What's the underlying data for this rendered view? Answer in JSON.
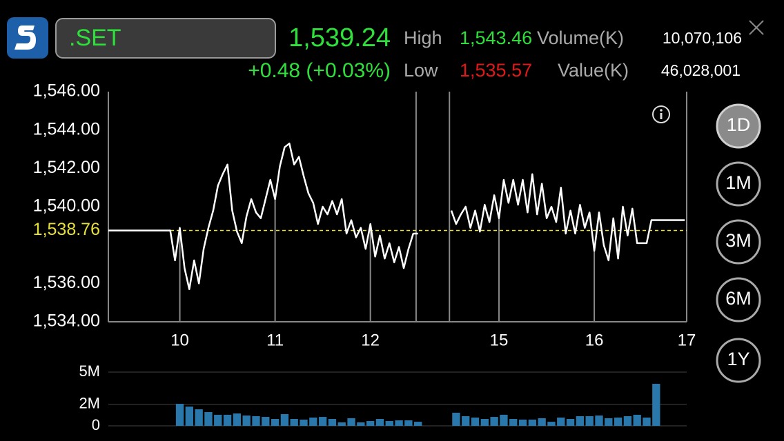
{
  "header": {
    "symbol": ".SET",
    "last": "1,539.24",
    "change": "+0.48 (+0.03%)",
    "high_label": "High",
    "high": "1,543.46",
    "volume_label": "Volume(K)",
    "volume": "10,070,106",
    "low_label": "Low",
    "low": "1,535.57",
    "value_label": "Value(K)",
    "value": "46,028,001"
  },
  "periods": [
    "1D",
    "1M",
    "3M",
    "6M",
    "1Y"
  ],
  "selected_period": 0,
  "chart_data": [
    {
      "type": "line",
      "color": "#ffffff",
      "x": [
        0,
        1,
        2,
        3,
        4,
        5,
        6,
        7,
        8,
        9,
        10,
        11,
        12,
        13,
        14,
        15,
        16,
        17,
        18,
        19,
        20,
        21,
        22,
        23,
        24,
        25,
        26,
        27,
        28,
        29,
        30,
        31,
        32,
        33,
        34,
        35,
        36,
        37,
        38,
        39,
        40,
        41,
        42,
        43,
        44,
        45,
        46,
        47,
        48,
        49,
        50,
        51,
        52,
        53,
        54,
        55,
        56,
        57,
        58,
        59,
        60,
        61,
        62,
        63,
        64,
        65,
        66,
        67,
        68,
        69,
        70,
        71,
        72,
        73,
        74,
        75,
        76,
        77,
        78,
        79,
        80,
        81,
        82,
        83,
        84,
        85,
        86,
        87,
        88,
        89,
        90,
        91,
        92,
        93,
        94,
        95,
        96,
        97,
        98,
        99,
        100,
        101,
        102,
        103,
        104,
        105,
        106,
        107,
        108,
        109,
        110,
        111,
        112,
        113,
        114,
        115,
        116,
        117,
        118,
        119,
        120,
        121
      ],
      "values": [
        1538.76,
        1538.76,
        1538.76,
        1538.76,
        1538.76,
        1538.76,
        1538.76,
        1538.76,
        1538.76,
        1538.76,
        1538.76,
        1538.76,
        1538.76,
        1538.76,
        1537.2,
        1538.9,
        1536.8,
        1535.7,
        1537.2,
        1536.0,
        1537.8,
        1538.9,
        1539.8,
        1541.1,
        1541.7,
        1542.2,
        1539.8,
        1538.7,
        1538.1,
        1539.5,
        1540.4,
        1539.7,
        1539.4,
        1540.4,
        1541.4,
        1540.4,
        1542.1,
        1543.1,
        1543.3,
        1542.2,
        1542.6,
        1541.6,
        1540.7,
        1540.2,
        1539.1,
        1540.0,
        1539.6,
        1540.3,
        1539.6,
        1540.4,
        1538.6,
        1539.3,
        1538.4,
        1538.9,
        1537.8,
        1539.1,
        1537.4,
        1538.5,
        1537.3,
        1538.1,
        1537.1,
        1537.9,
        1536.8,
        1537.8,
        1538.6,
        1538.6,
        null,
        null,
        null,
        null,
        null,
        null,
        1539.8,
        1539.1,
        1539.6,
        1540.0,
        1538.9,
        1539.8,
        1538.7,
        1540.1,
        1539.2,
        1540.6,
        1539.4,
        1541.4,
        1540.2,
        1541.4,
        1540.1,
        1541.4,
        1539.7,
        1541.7,
        1539.6,
        1541.2,
        1539.4,
        1540.0,
        1539.2,
        1541.0,
        1538.6,
        1539.8,
        1538.6,
        1540.1,
        1538.9,
        1539.7,
        1537.7,
        1539.7,
        1538.0,
        1537.2,
        1539.4,
        1537.3,
        1540.0,
        1538.5,
        1539.9,
        1538.1,
        1538.1,
        1538.1,
        1539.3,
        1539.3,
        1539.3,
        1539.3,
        1539.3,
        1539.3,
        1539.3,
        1539.3
      ],
      "xlim": [
        0,
        121.4
      ],
      "xticks": [
        {
          "value": 15,
          "label": "10"
        },
        {
          "value": 35,
          "label": "11"
        },
        {
          "value": 55,
          "label": "12"
        },
        {
          "value": 82,
          "label": "15"
        },
        {
          "value": 102,
          "label": "16"
        },
        {
          "value": 121.4,
          "label": "17"
        }
      ],
      "breaks": [
        64.6,
        71.6
      ],
      "ylim": [
        1534,
        1546
      ],
      "yticks": [
        {
          "value": 1534,
          "label": "1,534.00"
        },
        {
          "value": 1536,
          "label": "1,536.00"
        },
        {
          "value": 1540,
          "label": "1,540.00"
        },
        {
          "value": 1542,
          "label": "1,542.00"
        },
        {
          "value": 1544,
          "label": "1,544.00"
        },
        {
          "value": 1546,
          "label": "1,546.00"
        }
      ],
      "reference": {
        "value": 1538.76,
        "label": "1,538.76",
        "color": "#e8e03a"
      }
    },
    {
      "type": "bar",
      "color": "#2a78ab",
      "grid": true,
      "x": [
        15,
        17,
        19,
        21,
        23,
        25,
        27,
        29,
        31,
        33,
        35,
        37,
        39,
        41,
        43,
        45,
        47,
        49,
        51,
        53,
        55,
        57,
        59,
        61,
        63,
        65,
        73,
        75,
        77,
        79,
        81,
        83,
        85,
        87,
        89,
        91,
        93,
        95,
        97,
        99,
        101,
        103,
        105,
        107,
        109,
        111,
        113,
        115
      ],
      "values": [
        2050000,
        1790000,
        1540000,
        1280000,
        1030000,
        1030000,
        1150000,
        960000,
        900000,
        830000,
        640000,
        1090000,
        640000,
        580000,
        770000,
        830000,
        640000,
        320000,
        710000,
        320000,
        450000,
        640000,
        450000,
        510000,
        510000,
        380000,
        1220000,
        900000,
        770000,
        640000,
        830000,
        1030000,
        640000,
        580000,
        580000,
        710000,
        380000,
        770000,
        640000,
        900000,
        900000,
        960000,
        710000,
        770000,
        900000,
        1030000,
        770000,
        3910000
      ],
      "xlim": [
        0,
        121.4
      ],
      "ylim": [
        0,
        5000000
      ],
      "yticks": [
        {
          "value": 0,
          "label": "0"
        },
        {
          "value": 2000000,
          "label": "2M"
        },
        {
          "value": 5000000,
          "label": "5M"
        }
      ]
    }
  ]
}
